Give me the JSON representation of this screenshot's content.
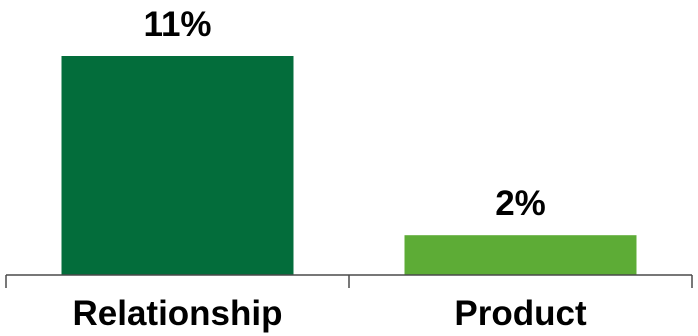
{
  "chart_data": {
    "type": "bar",
    "categories": [
      "Relationship",
      "Product"
    ],
    "values": [
      11,
      2
    ],
    "value_labels": [
      "11%",
      "2%"
    ],
    "colors": [
      "#036d3b",
      "#5dac36"
    ],
    "title": "",
    "xlabel": "",
    "ylabel": "",
    "ylim": [
      0,
      11
    ],
    "grid": false,
    "legend": "none",
    "axis_color": "#4a4a4a"
  }
}
